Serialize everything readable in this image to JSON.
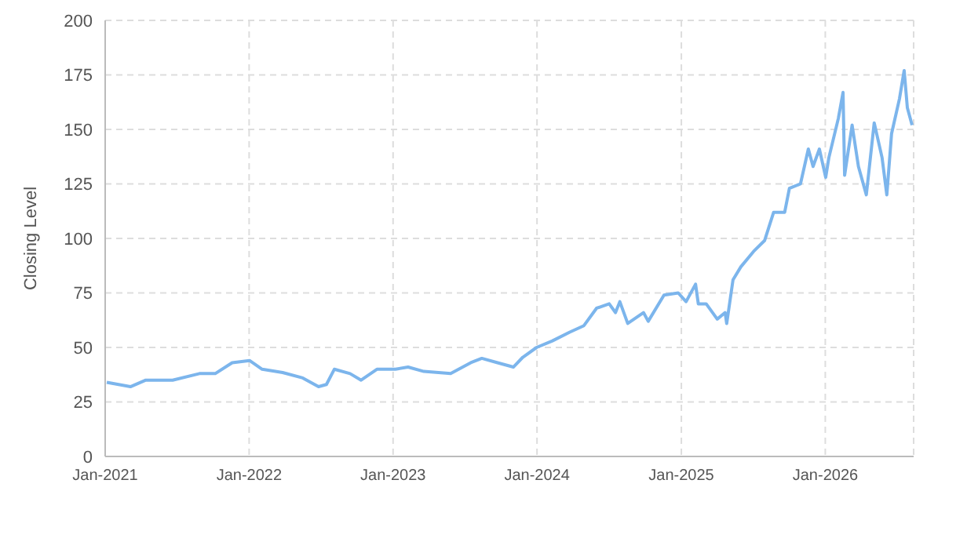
{
  "chart_data": {
    "type": "line",
    "ylabel": "Closing Level",
    "x": [
      "2021-01-05",
      "2021-03-06",
      "2021-04-14",
      "2021-06-21",
      "2021-08-28",
      "2021-10-07",
      "2021-11-19",
      "2022-01-02",
      "2022-02-03",
      "2022-03-27",
      "2022-05-17",
      "2022-06-26",
      "2022-07-16",
      "2022-08-05",
      "2022-09-14",
      "2022-10-12",
      "2022-11-21",
      "2023-01-07",
      "2023-02-08",
      "2023-03-20",
      "2023-05-27",
      "2023-07-17",
      "2023-08-14",
      "2023-09-23",
      "2023-11-02",
      "2023-11-26",
      "2023-12-31",
      "2024-02-09",
      "2024-03-24",
      "2024-04-29",
      "2024-05-31",
      "2024-07-02",
      "2024-07-18",
      "2024-07-29",
      "2024-08-18",
      "2024-09-27",
      "2024-10-09",
      "2024-11-18",
      "2024-12-24",
      "2025-01-13",
      "2025-02-06",
      "2025-02-13",
      "2025-03-05",
      "2025-04-02",
      "2025-04-22",
      "2025-04-26",
      "2025-05-12",
      "2025-06-01",
      "2025-07-03",
      "2025-07-31",
      "2025-08-23",
      "2025-09-20",
      "2025-10-02",
      "2025-10-30",
      "2025-11-19",
      "2025-12-01",
      "2025-12-17",
      "2026-01-02",
      "2026-01-10",
      "2026-02-03",
      "2026-02-15",
      "2026-02-19",
      "2026-03-10",
      "2026-03-26",
      "2026-04-15",
      "2026-05-05",
      "2026-05-25",
      "2026-06-06",
      "2026-06-18",
      "2026-07-08",
      "2026-07-20",
      "2026-07-28",
      "2026-08-09"
    ],
    "series": [
      {
        "color": "#7cb5ec",
        "values": [
          34,
          32,
          35,
          35,
          38,
          38,
          43,
          44,
          40,
          38.5,
          36,
          32,
          33,
          40,
          38,
          35,
          40,
          40,
          41,
          39,
          38,
          43,
          45,
          43,
          41,
          45.5,
          50,
          53,
          57,
          60,
          68,
          70,
          66,
          71,
          61,
          66,
          62,
          74,
          75,
          71,
          79,
          70,
          70,
          63,
          66,
          61,
          81,
          87,
          94,
          99,
          112,
          112,
          123,
          125,
          141,
          133,
          141,
          128,
          137,
          155,
          167,
          129,
          152,
          133,
          120,
          153,
          137,
          120,
          148,
          164,
          177,
          160,
          152
        ]
      }
    ],
    "xlim": [
      "2021-01-01",
      "2026-08-13"
    ],
    "xticks": [
      {
        "value": "2021-01-01",
        "label": "Jan-2021"
      },
      {
        "value": "2022-01-01",
        "label": "Jan-2022"
      },
      {
        "value": "2023-01-01",
        "label": "Jan-2023"
      },
      {
        "value": "2024-01-01",
        "label": "Jan-2024"
      },
      {
        "value": "2025-01-01",
        "label": "Jan-2025"
      },
      {
        "value": "2026-01-01",
        "label": "Jan-2026"
      }
    ],
    "ylim": [
      0,
      200
    ],
    "yticks": [
      0,
      25,
      50,
      75,
      100,
      125,
      150,
      175,
      200
    ],
    "grid": true,
    "marker": "none",
    "line_style": "solid"
  }
}
